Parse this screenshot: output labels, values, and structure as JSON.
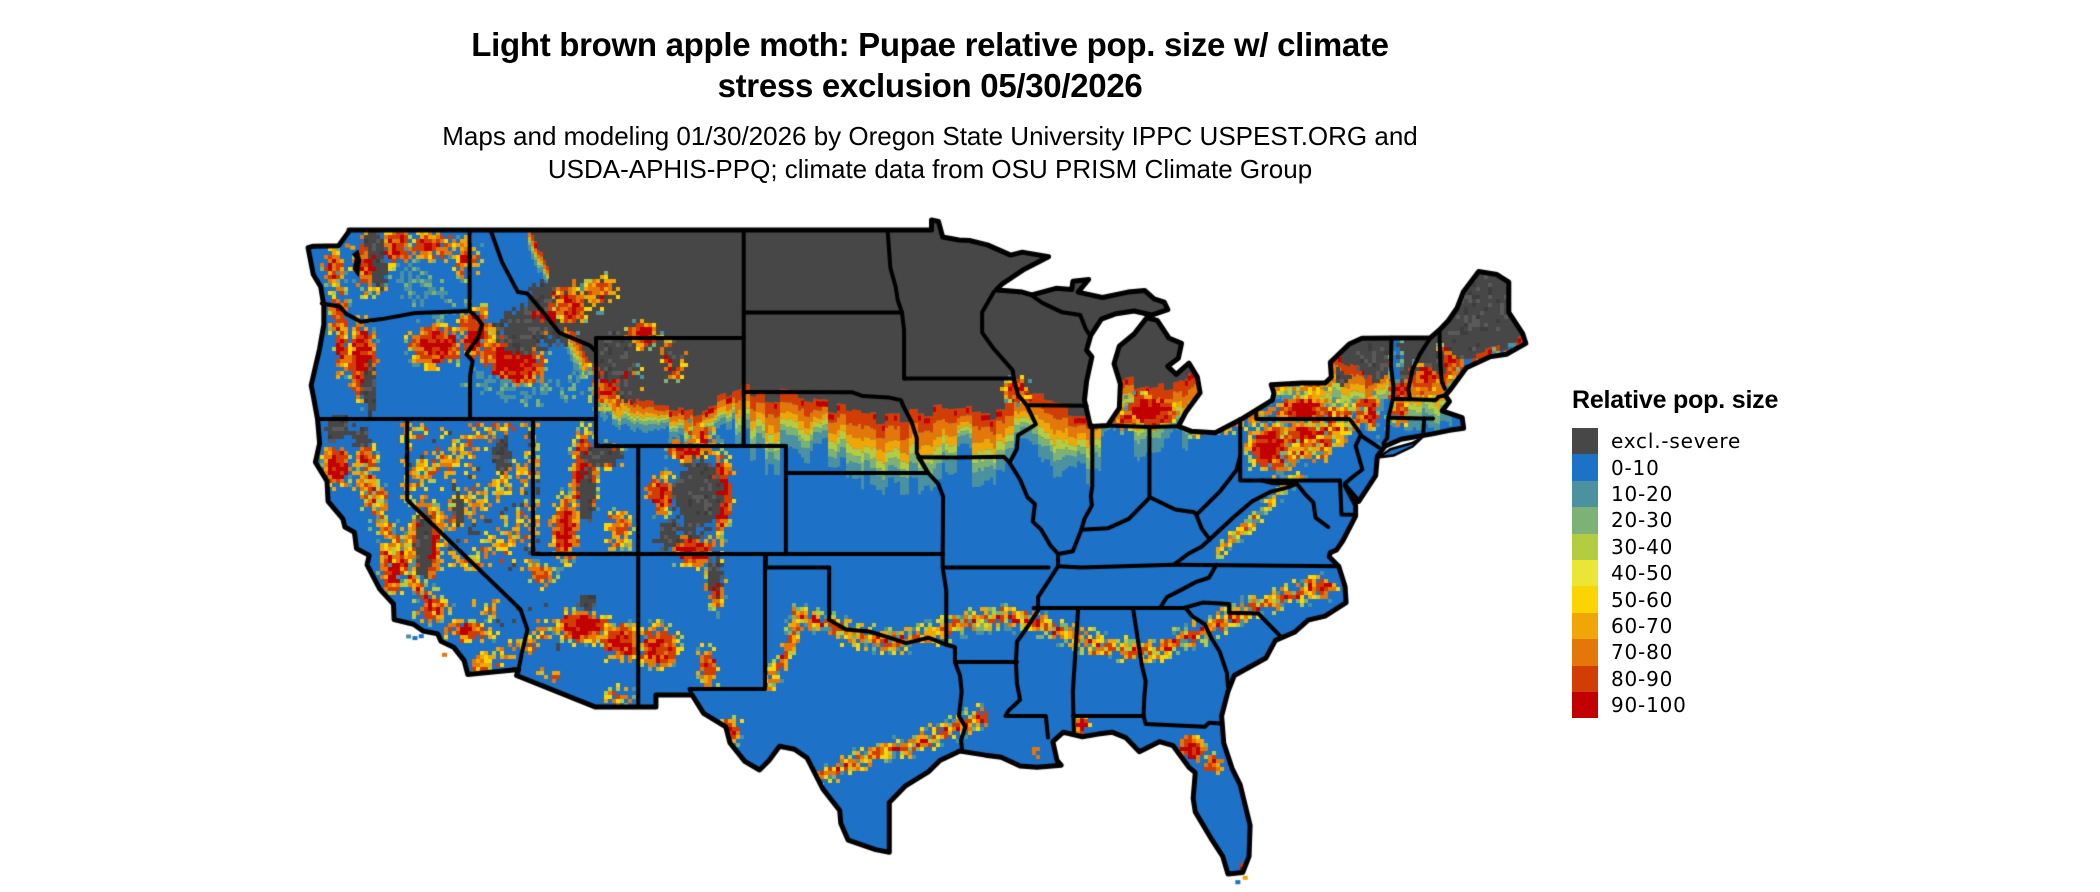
{
  "title": {
    "line1": "Light brown apple moth: Pupae relative pop. size w/ climate",
    "line2": "stress exclusion 05/30/2026"
  },
  "subtitle": {
    "line1": "Maps and modeling 01/30/2026 by Oregon State University IPPC USPEST.ORG and",
    "line2": "USDA-APHIS-PPQ; climate data from OSU PRISM Climate Group"
  },
  "legend": {
    "title": "Relative pop. size",
    "items": [
      {
        "label": "excl.-severe",
        "color": "#474747"
      },
      {
        "label": "0-10",
        "color": "#1d71c7"
      },
      {
        "label": "10-20",
        "color": "#4b91a0"
      },
      {
        "label": "20-30",
        "color": "#7cb276"
      },
      {
        "label": "30-40",
        "color": "#b3cc42"
      },
      {
        "label": "40-50",
        "color": "#e9e636"
      },
      {
        "label": "50-60",
        "color": "#fbd403"
      },
      {
        "label": "60-70",
        "color": "#efa606"
      },
      {
        "label": "70-80",
        "color": "#e37709"
      },
      {
        "label": "80-90",
        "color": "#d23d05"
      },
      {
        "label": "90-100",
        "color": "#c20000"
      }
    ]
  },
  "map": {
    "region": "Contiguous United States",
    "state_border_color": "#000000",
    "water_background": "#ffffff"
  }
}
